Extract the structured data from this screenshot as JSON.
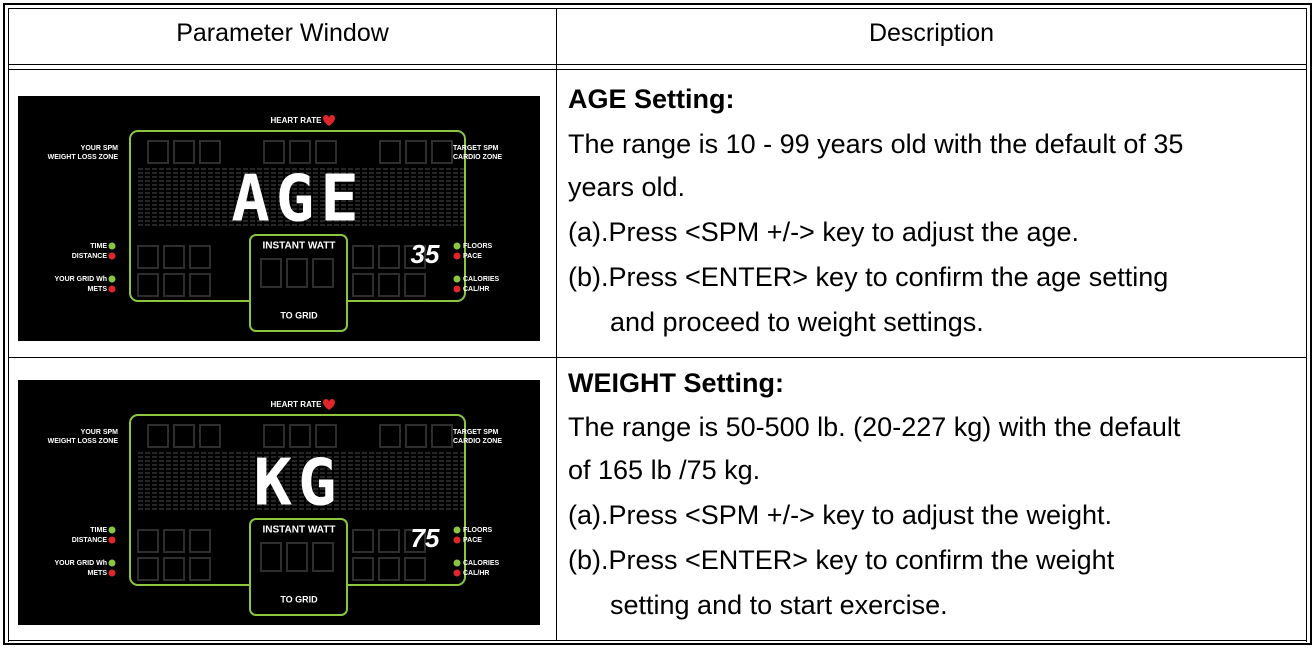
{
  "header": {
    "columns": [
      "Parameter Window",
      "Description"
    ]
  },
  "display_labels": {
    "heart_rate": "HEART RATE",
    "your_spm": "YOUR SPM",
    "weight_loss_zone": "WEIGHT LOSS ZONE",
    "target_spm": "TARGET SPM",
    "cardio_zone": "CARDIO ZONE",
    "time": "TIME",
    "distance": "DISTANCE",
    "your_grid_wh": "YOUR GRID Wh",
    "mets": "METS",
    "floors": "FLOORS",
    "pace": "PACE",
    "calories": "CALORIES",
    "cal_hr": "CAL/HR",
    "instant_watt": "INSTANT WATT",
    "to_grid": "TO GRID"
  },
  "rows": [
    {
      "display": {
        "text": "AGE",
        "value": "35"
      },
      "title": "AGE Setting:",
      "lines": [
        "The range is 10 - 99 years old with the default of 35",
        "years old.",
        "(a).Press <SPM +/-> key to adjust the age.",
        "(b).Press <ENTER> key to confirm the age setting",
        "and proceed to weight settings."
      ]
    },
    {
      "display": {
        "text": "KG",
        "value": "75"
      },
      "title": "WEIGHT Setting:",
      "lines": [
        "The range is 50-500 lb. (20-227 kg) with the default",
        "of 165 lb /75 kg.",
        "(a).Press <SPM +/-> key to adjust the weight.",
        "(b).Press <ENTER> key to confirm the weight",
        "setting and to start exercise."
      ]
    }
  ]
}
